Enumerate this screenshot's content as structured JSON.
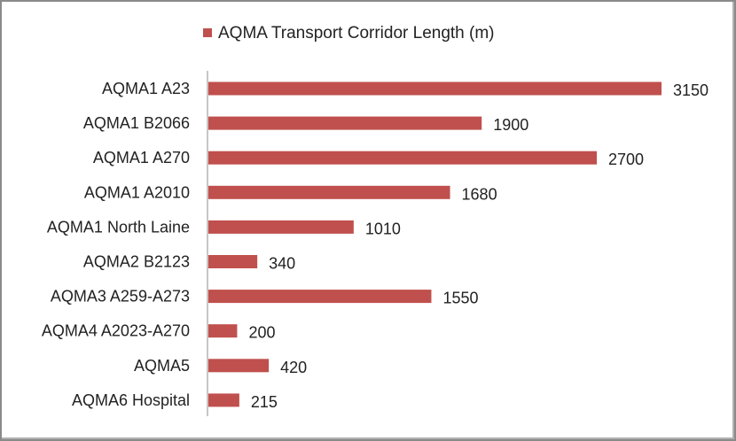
{
  "chart_data": {
    "type": "bar",
    "orientation": "horizontal",
    "categories": [
      "AQMA1 A23",
      "AQMA1 B2066",
      "AQMA1 A270",
      "AQMA1 A2010",
      "AQMA1 North Laine",
      "AQMA2 B2123",
      "AQMA3 A259-A273",
      "AQMA4 A2023-A270",
      "AQMA5",
      "AQMA6 Hospital"
    ],
    "series": [
      {
        "name": "AQMA Transport Corridor Length (m)",
        "values": [
          3150,
          1900,
          2700,
          1680,
          1010,
          340,
          1550,
          200,
          420,
          215
        ],
        "color": "#c0504d"
      }
    ],
    "data_labels": [
      "3150",
      "1900",
      "2700",
      "1680",
      "1010",
      "340",
      "1550",
      "200",
      "420",
      "215"
    ],
    "xlim": [
      0,
      3150
    ],
    "grid": false,
    "legend_position": "top"
  }
}
